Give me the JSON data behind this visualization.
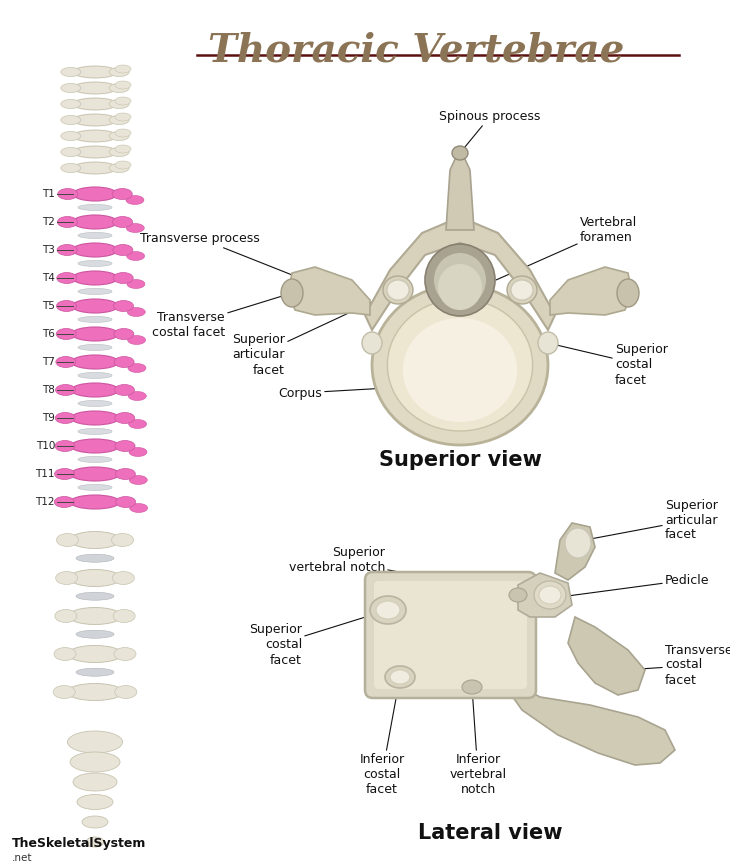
{
  "title": "Thoracic Vertebrae",
  "title_color": "#8B7355",
  "title_underline_color": "#5C1010",
  "bg_color": "#FFFFFF",
  "superior_view_label": "Superior view",
  "lateral_view_label": "Lateral view",
  "watermark_bold": "TheSkeletalSystem",
  "watermark_normal": ".net",
  "spine_labels": [
    "T1",
    "T2",
    "T3",
    "T4",
    "T5",
    "T6",
    "T7",
    "T8",
    "T9",
    "T10",
    "T11",
    "T12"
  ],
  "bone_color": "#E8E4D8",
  "bone_edge": "#C8C4B0",
  "pink_color": "#EE6FBB",
  "pink_edge": "#CC55A0",
  "annotation_fontsize": 9,
  "view_label_fontsize": 15,
  "spine_label_fontsize": 7.5
}
